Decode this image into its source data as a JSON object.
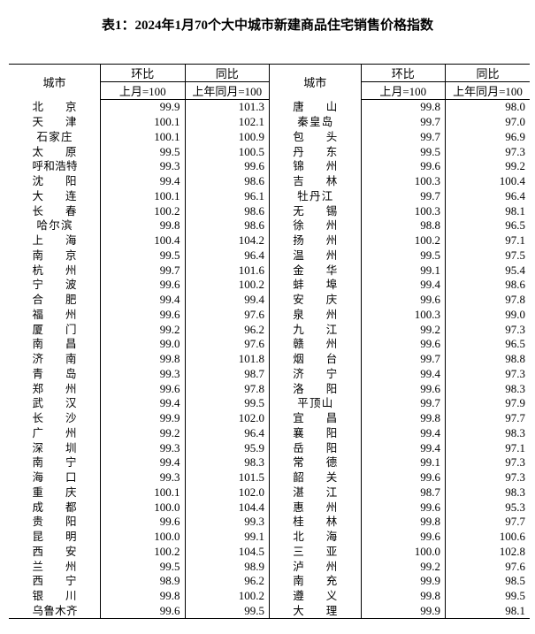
{
  "title": "表1：2024年1月70个大中城市新建商品住宅销售价格指数",
  "headers": {
    "city": "城市",
    "mom": "环比",
    "yoy": "同比",
    "mom_base": "上月=100",
    "yoy_base": "上年同月=100"
  },
  "rows": [
    {
      "left": [
        "北京",
        "99.9",
        "101.3"
      ],
      "right": [
        "唐山",
        "99.8",
        "98.0"
      ]
    },
    {
      "left": [
        "天津",
        "100.1",
        "102.1"
      ],
      "right": [
        "秦皇岛",
        "99.7",
        "97.0"
      ]
    },
    {
      "left": [
        "石家庄",
        "100.1",
        "100.9"
      ],
      "right": [
        "包头",
        "99.7",
        "96.9"
      ]
    },
    {
      "left": [
        "太原",
        "99.5",
        "100.5"
      ],
      "right": [
        "丹东",
        "99.5",
        "97.3"
      ]
    },
    {
      "left": [
        "呼和浩特",
        "99.3",
        "99.6"
      ],
      "right": [
        "锦州",
        "99.6",
        "99.2"
      ]
    },
    {
      "left": [
        "沈阳",
        "99.4",
        "98.6"
      ],
      "right": [
        "吉林",
        "100.3",
        "100.4"
      ]
    },
    {
      "left": [
        "大连",
        "100.1",
        "96.1"
      ],
      "right": [
        "牡丹江",
        "99.7",
        "96.4"
      ]
    },
    {
      "left": [
        "长春",
        "100.2",
        "98.6"
      ],
      "right": [
        "无锡",
        "100.3",
        "98.1"
      ]
    },
    {
      "left": [
        "哈尔滨",
        "99.8",
        "98.6"
      ],
      "right": [
        "徐州",
        "98.8",
        "96.5"
      ]
    },
    {
      "left": [
        "上海",
        "100.4",
        "104.2"
      ],
      "right": [
        "扬州",
        "100.2",
        "97.1"
      ]
    },
    {
      "left": [
        "南京",
        "99.5",
        "96.4"
      ],
      "right": [
        "温州",
        "99.5",
        "97.5"
      ]
    },
    {
      "left": [
        "杭州",
        "99.7",
        "101.6"
      ],
      "right": [
        "金华",
        "99.1",
        "95.4"
      ]
    },
    {
      "left": [
        "宁波",
        "99.6",
        "100.2"
      ],
      "right": [
        "蚌埠",
        "99.4",
        "98.6"
      ]
    },
    {
      "left": [
        "合肥",
        "99.4",
        "99.4"
      ],
      "right": [
        "安庆",
        "99.6",
        "97.8"
      ]
    },
    {
      "left": [
        "福州",
        "99.6",
        "97.6"
      ],
      "right": [
        "泉州",
        "100.3",
        "99.0"
      ]
    },
    {
      "left": [
        "厦门",
        "99.2",
        "96.2"
      ],
      "right": [
        "九江",
        "99.2",
        "97.3"
      ]
    },
    {
      "left": [
        "南昌",
        "99.0",
        "97.6"
      ],
      "right": [
        "赣州",
        "99.6",
        "96.5"
      ]
    },
    {
      "left": [
        "济南",
        "99.8",
        "101.8"
      ],
      "right": [
        "烟台",
        "99.7",
        "98.8"
      ]
    },
    {
      "left": [
        "青岛",
        "99.3",
        "98.7"
      ],
      "right": [
        "济宁",
        "99.4",
        "97.3"
      ]
    },
    {
      "left": [
        "郑州",
        "99.6",
        "97.8"
      ],
      "right": [
        "洛阳",
        "99.6",
        "98.3"
      ]
    },
    {
      "left": [
        "武汉",
        "99.4",
        "99.5"
      ],
      "right": [
        "平顶山",
        "99.7",
        "97.9"
      ]
    },
    {
      "left": [
        "长沙",
        "99.9",
        "102.0"
      ],
      "right": [
        "宜昌",
        "99.8",
        "97.7"
      ]
    },
    {
      "left": [
        "广州",
        "99.2",
        "96.4"
      ],
      "right": [
        "襄阳",
        "99.4",
        "98.3"
      ]
    },
    {
      "left": [
        "深圳",
        "99.3",
        "95.9"
      ],
      "right": [
        "岳阳",
        "99.4",
        "97.1"
      ]
    },
    {
      "left": [
        "南宁",
        "99.4",
        "98.3"
      ],
      "right": [
        "常德",
        "99.1",
        "97.3"
      ]
    },
    {
      "left": [
        "海口",
        "99.3",
        "101.5"
      ],
      "right": [
        "韶关",
        "99.6",
        "97.3"
      ]
    },
    {
      "left": [
        "重庆",
        "100.1",
        "102.0"
      ],
      "right": [
        "湛江",
        "98.7",
        "98.3"
      ]
    },
    {
      "left": [
        "成都",
        "100.0",
        "104.4"
      ],
      "right": [
        "惠州",
        "99.6",
        "95.3"
      ]
    },
    {
      "left": [
        "贵阳",
        "99.6",
        "99.3"
      ],
      "right": [
        "桂林",
        "99.8",
        "97.7"
      ]
    },
    {
      "left": [
        "昆明",
        "100.0",
        "99.1"
      ],
      "right": [
        "北海",
        "99.6",
        "100.6"
      ]
    },
    {
      "left": [
        "西安",
        "100.2",
        "104.5"
      ],
      "right": [
        "三亚",
        "100.0",
        "102.8"
      ]
    },
    {
      "left": [
        "兰州",
        "99.5",
        "98.9"
      ],
      "right": [
        "泸州",
        "99.2",
        "97.6"
      ]
    },
    {
      "left": [
        "西宁",
        "98.9",
        "96.2"
      ],
      "right": [
        "南充",
        "99.9",
        "98.5"
      ]
    },
    {
      "left": [
        "银川",
        "99.8",
        "100.2"
      ],
      "right": [
        "遵义",
        "99.8",
        "99.5"
      ]
    },
    {
      "left": [
        "乌鲁木齐",
        "99.6",
        "99.5"
      ],
      "right": [
        "大理",
        "99.9",
        "98.1"
      ]
    }
  ]
}
